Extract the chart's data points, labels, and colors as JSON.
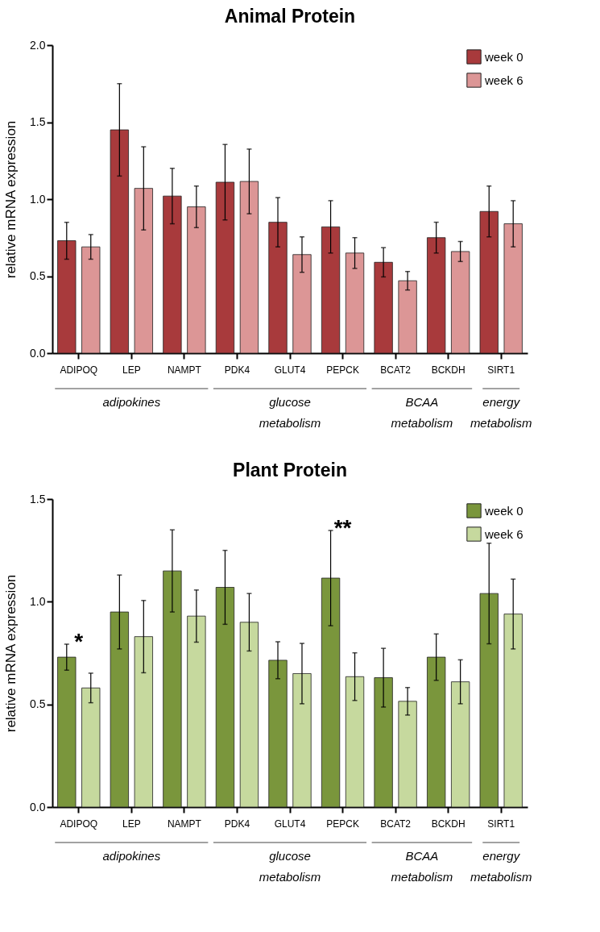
{
  "chart_data": [
    {
      "type": "bar",
      "title": "Animal Protein",
      "ylabel": "relative mRNA expression",
      "categories": [
        "ADIPOQ",
        "LEP",
        "NAMPT",
        "PDK4",
        "GLUT4",
        "PEPCK",
        "BCAT2",
        "BCKDH",
        "SIRT1"
      ],
      "series": [
        {
          "name": "week 0",
          "color": "#a83a3c",
          "values": [
            0.73,
            1.45,
            1.02,
            1.11,
            0.85,
            0.82,
            0.59,
            0.75,
            0.92
          ],
          "errors": [
            0.12,
            0.3,
            0.18,
            0.245,
            0.16,
            0.17,
            0.095,
            0.1,
            0.165
          ]
        },
        {
          "name": "week 6",
          "color": "#dc9696",
          "values": [
            0.69,
            1.07,
            0.95,
            1.115,
            0.64,
            0.65,
            0.47,
            0.66,
            0.84
          ],
          "errors": [
            0.08,
            0.27,
            0.135,
            0.21,
            0.115,
            0.1,
            0.06,
            0.065,
            0.15
          ]
        }
      ],
      "ylim": [
        0,
        2
      ],
      "yticks": [
        {
          "value": 0,
          "label": "0.0"
        },
        {
          "value": 0.5,
          "label": "0.5"
        },
        {
          "value": 1,
          "label": "1.0"
        },
        {
          "value": 1.5,
          "label": "1.5"
        },
        {
          "value": 2,
          "label": "2.0"
        }
      ],
      "legend": "top right",
      "annotations": [
        "adipokines",
        "glucose metabolism",
        "BCAA metabolism",
        "energy metabolism"
      ]
    },
    {
      "type": "bar",
      "title": "Plant Protein",
      "ylabel": "relative mRNA expression",
      "categories": [
        "ADIPOQ",
        "LEP",
        "NAMPT",
        "PDK4",
        "GLUT4",
        "PEPCK",
        "BCAT2",
        "BCKDH",
        "SIRT1"
      ],
      "series": [
        {
          "name": "week 0",
          "color": "#7a963c",
          "values": [
            0.73,
            0.95,
            1.15,
            1.07,
            0.715,
            1.115,
            0.63,
            0.73,
            1.04
          ],
          "errors": [
            0.063,
            0.18,
            0.2,
            0.18,
            0.09,
            0.232,
            0.143,
            0.113,
            0.245
          ]
        },
        {
          "name": "week 6",
          "color": "#c6d99e",
          "values": [
            0.58,
            0.83,
            0.93,
            0.9,
            0.65,
            0.635,
            0.515,
            0.61,
            0.94
          ],
          "errors": [
            0.072,
            0.176,
            0.127,
            0.14,
            0.147,
            0.116,
            0.067,
            0.107,
            0.17
          ]
        }
      ],
      "ylim": [
        0,
        1.5
      ],
      "yticks": [
        {
          "value": 0,
          "label": "0.0"
        },
        {
          "value": 0.5,
          "label": "0.5"
        },
        {
          "value": 1,
          "label": "1.0"
        },
        {
          "value": 1.5,
          "label": "1.5"
        }
      ],
      "legend": "top right",
      "annotations": [
        "adipokines",
        "glucose metabolism",
        "BCAA metabolism",
        "energy metabolism",
        "*",
        "**"
      ]
    }
  ]
}
